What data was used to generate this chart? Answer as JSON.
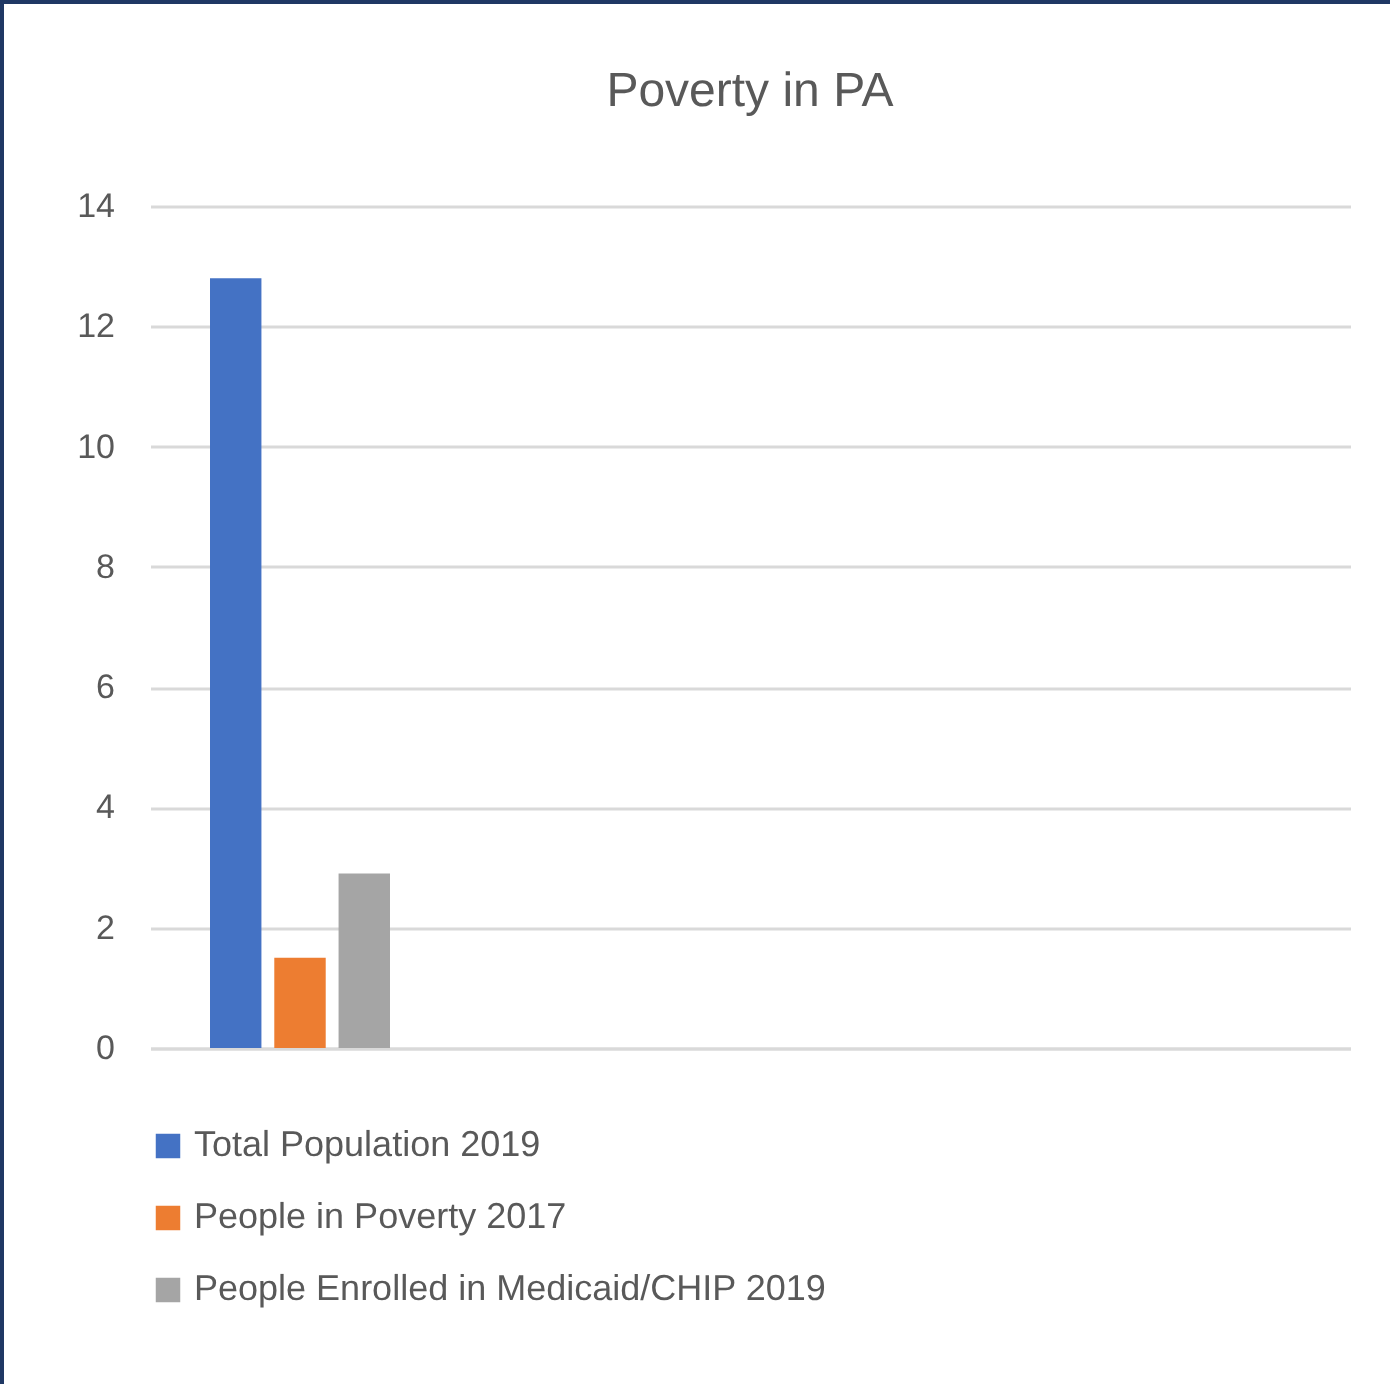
{
  "chart_data": {
    "type": "bar",
    "title": "Poverty in PA",
    "categories": [
      null,
      null,
      null,
      null
    ],
    "series": [
      {
        "name": "Total Population 2019",
        "color": "#4472c4",
        "values": [
          12.8,
          null,
          null,
          null
        ]
      },
      {
        "name": "People in Poverty 2017",
        "color": "#ed7d31",
        "values": [
          1.5,
          null,
          null,
          null
        ]
      },
      {
        "name": "People Enrolled in Medicaid/CHIP 2019",
        "color": "#a5a5a5",
        "values": [
          2.9,
          null,
          null,
          null
        ]
      }
    ],
    "ylim": [
      0,
      14
    ],
    "yticks": [
      0,
      2,
      4,
      6,
      8,
      10,
      12,
      14
    ],
    "grid": "y",
    "legend": "bottom",
    "tick_labels": "y"
  }
}
